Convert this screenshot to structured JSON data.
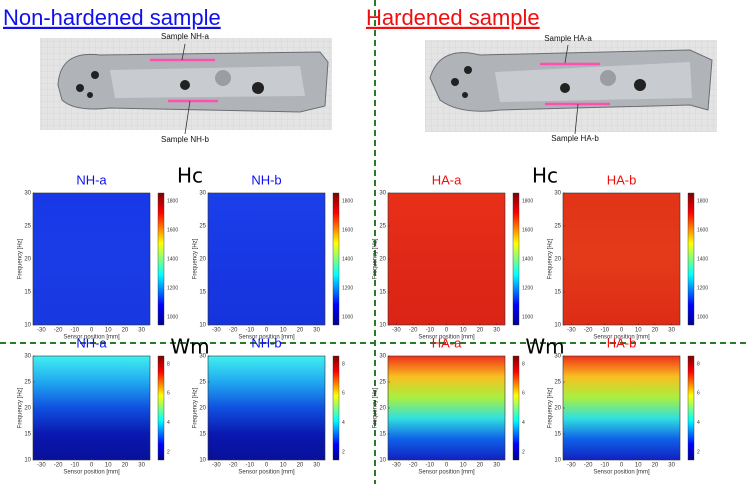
{
  "axes": {
    "xlabel": "Sensor position [mm]",
    "ylabel": "Frequency [Hz]",
    "xticks": [
      -30,
      -20,
      -10,
      0,
      10,
      20,
      30
    ],
    "xlim": [
      -35,
      35
    ],
    "yticks": [
      10,
      15,
      20,
      25,
      30
    ],
    "ylim": [
      10,
      30
    ]
  },
  "sections": [
    {
      "title": "Non-hardened sample",
      "color": "#1010ee",
      "photo_labels": [
        "Sample NH-a",
        "Sample NH-b"
      ],
      "rows": [
        {
          "label": "Hc",
          "plots": [
            {
              "title": "NH-a",
              "title_color": "#1010ee",
              "colors": [
                "#1838e8",
                "#1a3ce6",
                "#1838e0"
              ],
              "cbar_ticks": [
                1800,
                1600,
                1400,
                1200,
                1000
              ]
            },
            {
              "title": "NH-b",
              "title_color": "#1010ee",
              "colors": [
                "#1a40ea",
                "#1838e4",
                "#1634dc"
              ],
              "cbar_ticks": [
                1800,
                1600,
                1400,
                1200,
                1000
              ]
            }
          ]
        },
        {
          "label": "Wm",
          "plots": [
            {
              "title": "NH-a",
              "title_color": "#1010ee",
              "colors": [
                "#40f0f0",
                "#20a8f0",
                "#1050e0",
                "#0a18b0",
                "#08109a"
              ],
              "cbar_ticks": [
                8,
                6,
                4,
                2
              ]
            },
            {
              "title": "NH-b",
              "title_color": "#1010ee",
              "colors": [
                "#40f0f0",
                "#20a8f0",
                "#1050e0",
                "#0a18b0",
                "#08109a"
              ],
              "cbar_ticks": [
                8,
                6,
                4,
                2
              ]
            }
          ]
        }
      ]
    },
    {
      "title": "Hardened sample",
      "color": "#ee1010",
      "photo_labels": [
        "Sample HA-a",
        "Sample HA-b"
      ],
      "rows": [
        {
          "label": "Hc",
          "plots": [
            {
              "title": "HA-a",
              "title_color": "#ee1010",
              "colors": [
                "#e83018",
                "#e02818",
                "#dc2416"
              ],
              "cbar_ticks": [
                1800,
                1600,
                1400,
                1200,
                1000
              ]
            },
            {
              "title": "HA-b",
              "title_color": "#ee1010",
              "colors": [
                "#e23418",
                "#e43a1a",
                "#de2c16"
              ],
              "cbar_ticks": [
                1800,
                1600,
                1400,
                1200,
                1000
              ]
            }
          ]
        },
        {
          "label": "Wm",
          "plots": [
            {
              "title": "HA-a",
              "title_color": "#ee1010",
              "colors": [
                "#f03018",
                "#f8c020",
                "#a8f040",
                "#30e0e0",
                "#1060e8",
                "#1020c0"
              ],
              "cbar_ticks": [
                8,
                6,
                4,
                2
              ]
            },
            {
              "title": "HA-b",
              "title_color": "#ee1010",
              "colors": [
                "#f03018",
                "#f8c020",
                "#a8f040",
                "#30e0e0",
                "#1060e8",
                "#1020c0"
              ],
              "cbar_ticks": [
                8,
                6,
                4,
                2
              ]
            }
          ]
        }
      ]
    }
  ]
}
